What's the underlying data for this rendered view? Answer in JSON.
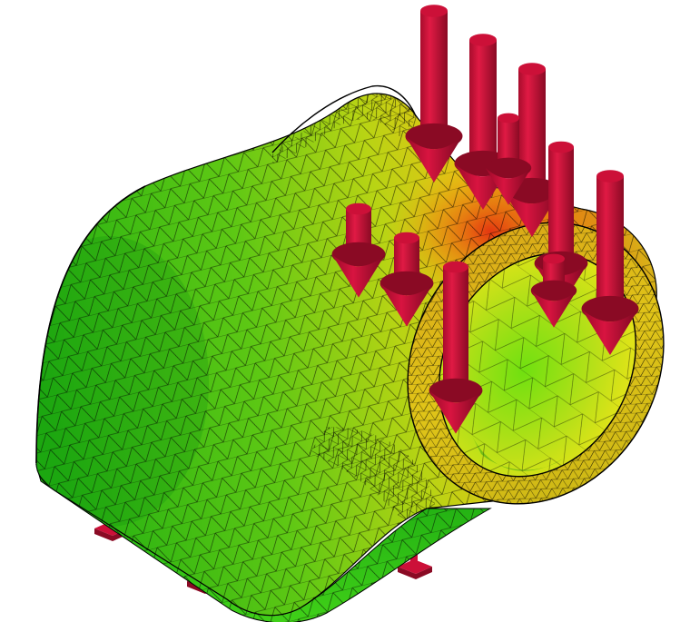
{
  "scene": {
    "type": "finite-element-mesh-render",
    "colors": {
      "background": "#ffffff",
      "low_stress": "#10b010",
      "mid_low": "#58d010",
      "mid": "#c8dc10",
      "mid_high": "#e8b010",
      "high_stress": "#e02c10",
      "arrow": "#cc1038",
      "arrow_shade": "#8a0a24",
      "support": "#cc1038",
      "mesh_edge": "#000000"
    },
    "load_arrows": {
      "count": 10,
      "direction": "down"
    },
    "supports": {
      "count": 3
    }
  }
}
